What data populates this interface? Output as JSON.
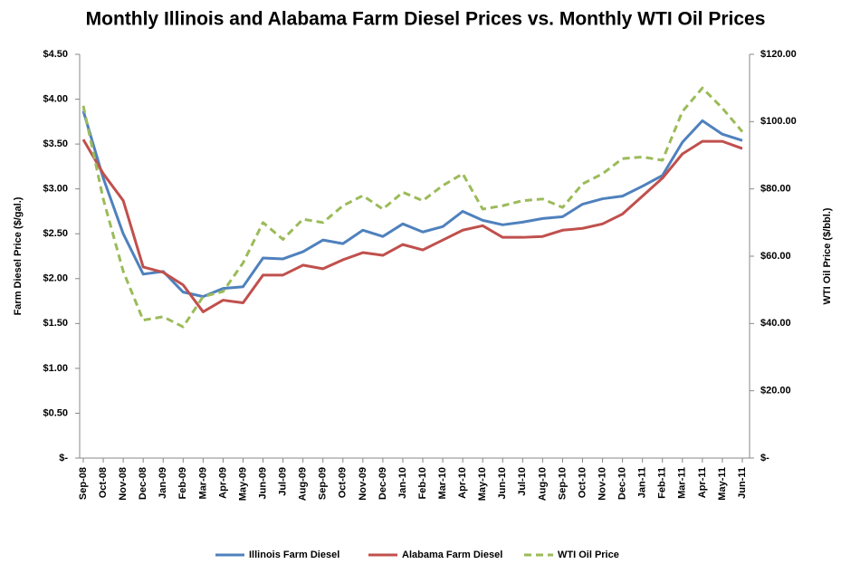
{
  "chart_data": {
    "type": "line",
    "title": "Monthly Illinois and Alabama Farm Diesel Prices vs. Monthly WTI Oil Prices",
    "y_label": "Farm Diesel Price ($/gal.)",
    "y2_label": "WTI Oil Price ($/bbl.)",
    "categories": [
      "Sep-08",
      "Oct-08",
      "Nov-08",
      "Dec-08",
      "Jan-09",
      "Feb-09",
      "Mar-09",
      "Apr-09",
      "May-09",
      "Jun-09",
      "Jul-09",
      "Aug-09",
      "Sep-09",
      "Oct-09",
      "Nov-09",
      "Dec-09",
      "Jan-10",
      "Feb-10",
      "Mar-10",
      "Apr-10",
      "May-10",
      "Jun-10",
      "Jul-10",
      "Aug-10",
      "Sep-10",
      "Oct-10",
      "Nov-10",
      "Dec-10",
      "Jan-11",
      "Feb-11",
      "Mar-11",
      "Apr-11",
      "May-11",
      "Jun-11"
    ],
    "series": [
      {
        "name": "Illinois Farm Diesel",
        "color": "#4f81bd",
        "values": [
          3.87,
          3.12,
          2.5,
          2.05,
          2.08,
          1.85,
          1.8,
          1.89,
          1.91,
          2.23,
          2.22,
          2.3,
          2.43,
          2.39,
          2.54,
          2.47,
          2.61,
          2.52,
          2.58,
          2.75,
          2.65,
          2.6,
          2.63,
          2.67,
          2.69,
          2.83,
          2.89,
          2.92,
          3.03,
          3.15,
          3.52,
          3.76,
          3.61,
          3.54
        ]
      },
      {
        "name": "Alabama Farm Diesel",
        "color": "#c0504d",
        "values": [
          3.55,
          3.17,
          2.87,
          2.13,
          2.07,
          1.93,
          1.63,
          1.76,
          1.73,
          2.04,
          2.04,
          2.15,
          2.11,
          2.21,
          2.29,
          2.26,
          2.38,
          2.32,
          2.43,
          2.54,
          2.59,
          2.46,
          2.46,
          2.47,
          2.54,
          2.56,
          2.61,
          2.72,
          2.92,
          3.12,
          3.39,
          3.53,
          3.53,
          3.45
        ]
      },
      {
        "name": "WTI Oil Price",
        "color": "#9bbb59",
        "axis": "y2",
        "dashed": true,
        "values": [
          104.7,
          77,
          55.5,
          41,
          42,
          39,
          48,
          49.5,
          58,
          70,
          65,
          71,
          70,
          75,
          78,
          74,
          79,
          76.5,
          81,
          84.5,
          74,
          75,
          76.5,
          77,
          74.5,
          81.5,
          84.5,
          89,
          89.5,
          88.5,
          103,
          110,
          104,
          97
        ]
      }
    ],
    "ylim": [
      0,
      4.5
    ],
    "yticks": [
      {
        "value": 0,
        "label": "$-"
      },
      {
        "value": 0.5,
        "label": "$0.50"
      },
      {
        "value": 1,
        "label": "$1.00"
      },
      {
        "value": 1.5,
        "label": "$1.50"
      },
      {
        "value": 2,
        "label": "$2.00"
      },
      {
        "value": 2.5,
        "label": "$2.50"
      },
      {
        "value": 3,
        "label": "$3.00"
      },
      {
        "value": 3.5,
        "label": "$3.50"
      },
      {
        "value": 4,
        "label": "$4.00"
      },
      {
        "value": 4.5,
        "label": "$4.50"
      }
    ],
    "y2lim": [
      0,
      120
    ],
    "y2ticks": [
      {
        "value": 0,
        "label": "$-"
      },
      {
        "value": 20,
        "label": "$20.00"
      },
      {
        "value": 40,
        "label": "$40.00"
      },
      {
        "value": 60,
        "label": "$60.00"
      },
      {
        "value": 80,
        "label": "$80.00"
      },
      {
        "value": 100,
        "label": "$100.00"
      },
      {
        "value": 120,
        "label": "$120.00"
      }
    ],
    "grid": false,
    "legend": "bottom"
  }
}
